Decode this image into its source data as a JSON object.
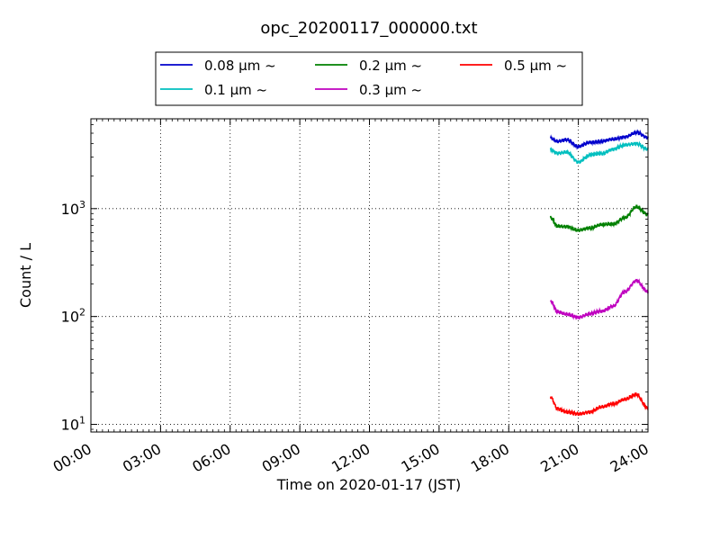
{
  "chart_data": {
    "type": "line",
    "title": "opc_20200117_000000.txt",
    "xlabel": "Time on 2020-01-17 (JST)",
    "ylabel": "Count / L",
    "yscale": "log",
    "ylim": [
      8.5,
      6800
    ],
    "xlim": [
      0,
      24
    ],
    "x_tick_labels": [
      "00:00",
      "03:00",
      "06:00",
      "09:00",
      "12:00",
      "15:00",
      "18:00",
      "21:00",
      "24:00"
    ],
    "y_ticks": [
      {
        "value": 10,
        "base": "10",
        "exp": "1"
      },
      {
        "value": 100,
        "base": "10",
        "exp": "2"
      },
      {
        "value": 1000,
        "base": "10",
        "exp": "3"
      }
    ],
    "grid": true,
    "legend_position": "top-center (outside plot)",
    "x_hours": [
      19.8,
      20.1,
      20.5,
      21.0,
      21.5,
      22.0,
      22.5,
      23.0,
      23.5,
      24.0
    ],
    "series": [
      {
        "name": "0.08 μm ~",
        "color": "#0000cc",
        "values": [
          4500,
          4200,
          4350,
          3750,
          4100,
          4200,
          4400,
          4600,
          5100,
          4550
        ]
      },
      {
        "name": "0.1 μm ~",
        "color": "#00bfbf",
        "values": [
          3500,
          3250,
          3350,
          2700,
          3150,
          3250,
          3550,
          3900,
          4000,
          3550
        ]
      },
      {
        "name": "0.2 μm ~",
        "color": "#008000",
        "values": [
          830,
          690,
          680,
          630,
          660,
          710,
          720,
          820,
          1040,
          880
        ]
      },
      {
        "name": "0.3 μm ~",
        "color": "#bf00bf",
        "values": [
          140,
          110,
          105,
          98,
          106,
          112,
          125,
          170,
          215,
          170
        ]
      },
      {
        "name": "0.5 μm ~",
        "color": "#ff0000",
        "values": [
          18,
          14,
          13,
          12.5,
          13,
          14.5,
          15.5,
          17,
          19,
          14
        ]
      }
    ]
  }
}
